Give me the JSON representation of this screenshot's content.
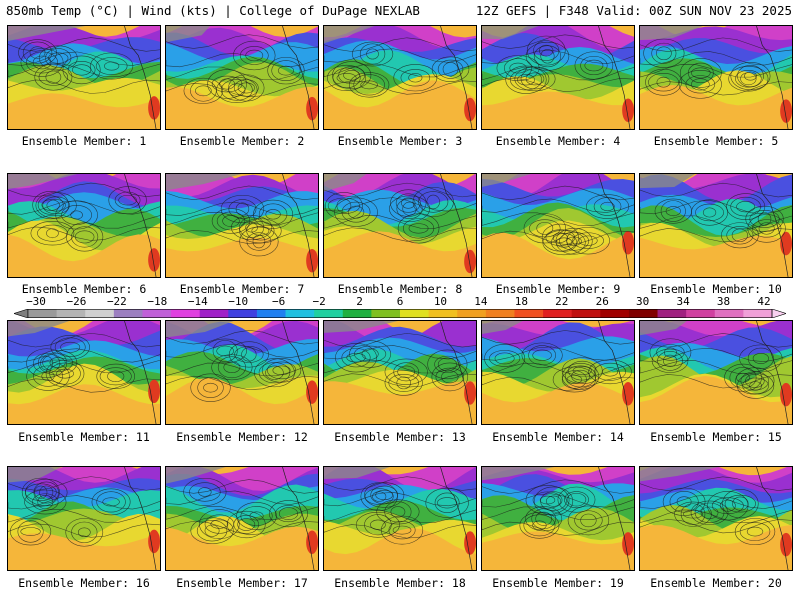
{
  "header": {
    "title": "850mb Temp (°C) | Wind (kts) | College of DuPage NEXLAB",
    "run_info": "12Z GEFS | F348 Valid: 00Z SUN NOV 23 2025"
  },
  "colorbar": {
    "ticks": [
      "-30",
      "-26",
      "-22",
      "-18",
      "-14",
      "-10",
      "-6",
      "-2",
      "2",
      "6",
      "10",
      "14",
      "18",
      "22",
      "26",
      "30",
      "34",
      "38",
      "42"
    ],
    "colors": [
      "#7f7f7f",
      "#9a9a9a",
      "#b4b4b4",
      "#d0d0d0",
      "#9c7fc0",
      "#c060d8",
      "#e040e0",
      "#a020c8",
      "#4040e0",
      "#2080f0",
      "#20c0e0",
      "#20d0a0",
      "#20b040",
      "#80c020",
      "#e0e020",
      "#f0c020",
      "#f0a020",
      "#f08020",
      "#f05020",
      "#e02020",
      "#c01010",
      "#a00000",
      "#800000",
      "#a02080",
      "#d040a0",
      "#e070c0",
      "#f0a0d8",
      "#f8d0f0"
    ]
  },
  "members": [
    {
      "label": "Ensemble Member: 1"
    },
    {
      "label": "Ensemble Member: 2"
    },
    {
      "label": "Ensemble Member: 3"
    },
    {
      "label": "Ensemble Member: 4"
    },
    {
      "label": "Ensemble Member: 5"
    },
    {
      "label": "Ensemble Member: 6"
    },
    {
      "label": "Ensemble Member: 7"
    },
    {
      "label": "Ensemble Member: 8"
    },
    {
      "label": "Ensemble Member: 9"
    },
    {
      "label": "Ensemble Member: 10"
    },
    {
      "label": "Ensemble Member: 11"
    },
    {
      "label": "Ensemble Member: 12"
    },
    {
      "label": "Ensemble Member: 13"
    },
    {
      "label": "Ensemble Member: 14"
    },
    {
      "label": "Ensemble Member: 15"
    },
    {
      "label": "Ensemble Member: 16"
    },
    {
      "label": "Ensemble Member: 17"
    },
    {
      "label": "Ensemble Member: 18"
    },
    {
      "label": "Ensemble Member: 19"
    },
    {
      "label": "Ensemble Member: 20"
    }
  ]
}
